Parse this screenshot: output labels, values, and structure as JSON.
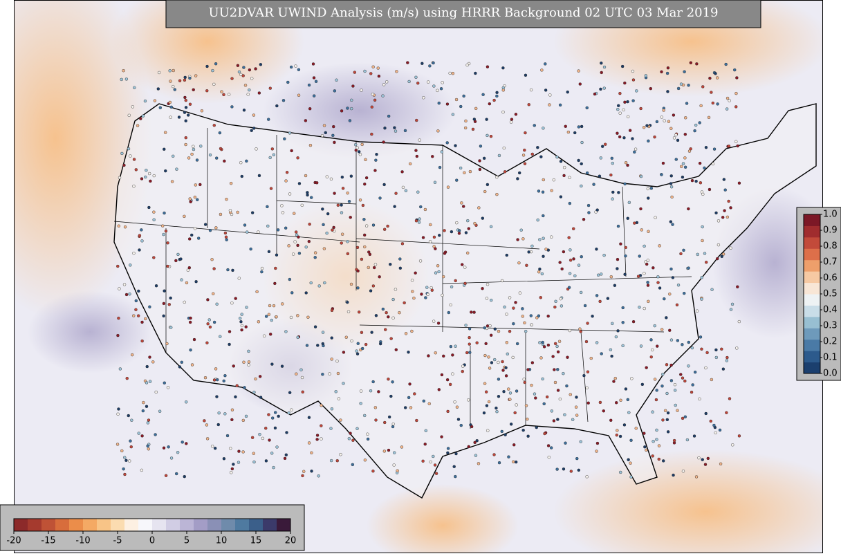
{
  "title": "UU2DVAR UWIND Analysis (m/s) using HRRR Background 02 UTC 03 Mar 2019",
  "colorbars": [
    {
      "orientation": "horizontal",
      "lim": [
        -20,
        20
      ],
      "ticks": [
        -20,
        -15,
        -10,
        -5,
        0,
        5,
        10,
        15,
        20
      ],
      "colors": [
        "#8c2a2a",
        "#a53a2e",
        "#bf5236",
        "#d86d3c",
        "#eb8d4a",
        "#f4a964",
        "#f8c487",
        "#fbdcb0",
        "#fdf0e2",
        "#f7f7fb",
        "#e6e4f0",
        "#d1cde4",
        "#bbb5d6",
        "#a39dc6",
        "#8a90b6",
        "#6f8bab",
        "#4f7aa0",
        "#3b5f8a",
        "#3b3a6a",
        "#3a1a3a"
      ]
    },
    {
      "orientation": "vertical",
      "lim": [
        0,
        1
      ],
      "ticks": [
        {
          "value": 0,
          "label": "0.0"
        },
        {
          "value": 0.1,
          "label": "0.1"
        },
        {
          "value": 0.2,
          "label": "0.2"
        },
        {
          "value": 0.3,
          "label": "0.3"
        },
        {
          "value": 0.4,
          "label": "0.4"
        },
        {
          "value": 0.5,
          "label": "0.5"
        },
        {
          "value": 0.6,
          "label": "0.6"
        },
        {
          "value": 0.7,
          "label": "0.7"
        },
        {
          "value": 0.8,
          "label": "0.8"
        },
        {
          "value": 0.9,
          "label": "0.9"
        },
        {
          "value": 1,
          "label": "1.0"
        }
      ],
      "colors": [
        "#1b3f6e",
        "#2c5a8c",
        "#4a7aa6",
        "#6e9abb",
        "#98bfd2",
        "#c9dde8",
        "#eef2f4",
        "#f8e6d6",
        "#f6c9a3",
        "#ee9f6b",
        "#dd6f4a",
        "#c24a3a",
        "#a02c2e",
        "#7c1826"
      ]
    }
  ]
}
